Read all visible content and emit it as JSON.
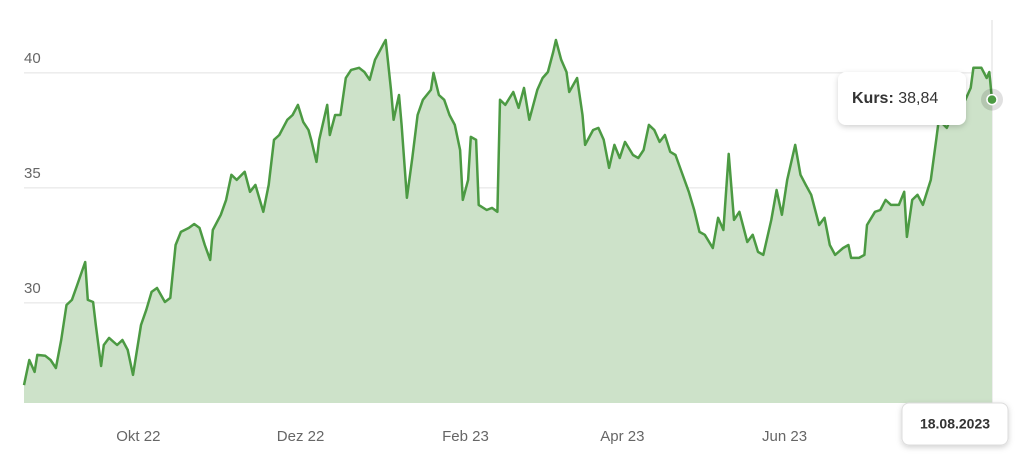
{
  "chart_data": {
    "type": "area",
    "x": [
      0,
      2,
      4,
      5,
      8,
      10,
      12,
      14,
      16,
      18,
      20,
      23,
      24,
      26,
      27,
      29,
      30,
      32,
      35,
      37,
      39,
      41,
      44,
      46,
      48,
      50,
      53,
      55,
      57,
      59,
      62,
      64,
      66,
      68,
      70,
      71,
      74,
      76,
      78,
      80,
      83,
      85,
      87,
      90,
      92,
      94,
      96,
      99,
      101,
      103,
      105,
      107,
      108,
      110,
      111,
      114,
      115,
      117,
      119,
      121,
      123,
      126,
      128,
      130,
      132,
      135,
      136,
      138,
      139,
      141,
      142,
      144,
      146,
      148,
      150,
      153,
      154,
      156,
      158,
      160,
      162,
      164,
      165,
      167,
      168,
      170,
      171,
      174,
      176,
      178,
      179,
      181,
      184,
      186,
      188,
      190,
      193,
      195,
      197,
      199,
      200,
      202,
      204,
      205,
      208,
      210,
      211,
      214,
      216,
      218,
      220,
      222,
      224,
      226,
      229,
      231,
      233,
      235,
      237,
      239,
      241,
      243,
      245,
      247,
      250,
      252,
      254,
      256,
      259,
      261,
      263,
      265,
      267,
      269,
      272,
      274,
      276,
      278,
      281,
      283,
      285,
      287,
      290,
      292,
      294,
      296,
      299,
      301,
      303,
      305,
      308,
      310,
      311,
      314,
      316,
      317,
      320,
      322,
      324,
      326,
      329,
      331,
      332,
      334,
      336,
      338,
      341,
      343,
      344,
      347,
      349,
      351,
      354,
      356,
      357,
      360,
      362,
      363,
      364
    ],
    "series": [
      {
        "name": "Kurs",
        "color": "#4c9a43",
        "fill_color": "#cde2c9",
        "values": [
          26.43,
          27.52,
          27.0,
          27.74,
          27.7,
          27.52,
          27.17,
          28.39,
          29.91,
          30.13,
          30.78,
          31.78,
          30.13,
          30.04,
          29.04,
          27.26,
          28.17,
          28.48,
          28.17,
          28.39,
          27.96,
          26.87,
          29.04,
          29.7,
          30.48,
          30.65,
          30.04,
          30.22,
          32.52,
          33.09,
          33.26,
          33.43,
          33.26,
          32.52,
          31.87,
          33.17,
          33.83,
          34.48,
          35.57,
          35.35,
          35.7,
          34.83,
          35.13,
          33.96,
          35.13,
          37.09,
          37.3,
          37.96,
          38.17,
          38.61,
          37.87,
          37.52,
          37.09,
          36.13,
          37.09,
          38.61,
          37.3,
          38.17,
          38.17,
          39.78,
          40.13,
          40.22,
          40.04,
          39.7,
          40.57,
          41.22,
          41.43,
          39.26,
          37.96,
          39.04,
          37.74,
          34.57,
          36.3,
          38.17,
          38.83,
          39.26,
          40.0,
          39.04,
          38.83,
          38.17,
          37.74,
          36.65,
          34.48,
          35.35,
          37.22,
          37.09,
          34.26,
          34.04,
          34.13,
          33.96,
          38.83,
          38.61,
          39.17,
          38.48,
          39.35,
          37.96,
          39.26,
          39.78,
          40.04,
          40.91,
          41.43,
          40.57,
          40.04,
          39.17,
          39.78,
          38.17,
          36.87,
          37.52,
          37.61,
          37.09,
          35.87,
          36.87,
          36.3,
          37.0,
          36.43,
          36.3,
          36.65,
          37.74,
          37.52,
          37.0,
          37.3,
          36.57,
          36.43,
          35.78,
          34.83,
          34.04,
          33.09,
          32.96,
          32.39,
          33.7,
          33.17,
          36.48,
          33.61,
          33.96,
          32.65,
          32.96,
          32.22,
          32.09,
          33.61,
          34.91,
          33.83,
          35.35,
          36.87,
          35.57,
          35.13,
          34.7,
          33.39,
          33.7,
          32.52,
          32.09,
          32.39,
          32.52,
          31.96,
          31.96,
          32.09,
          33.39,
          33.96,
          34.04,
          34.48,
          34.26,
          34.26,
          34.83,
          32.87,
          34.48,
          34.7,
          34.26,
          35.35,
          37.09,
          37.96,
          37.61,
          38.17,
          38.39,
          38.83,
          39.35,
          40.22,
          40.22,
          39.78,
          40.04,
          38.84
        ]
      }
    ],
    "xlim": [
      0,
      364
    ],
    "xticks": [
      {
        "value": 43,
        "label": "Okt 22"
      },
      {
        "value": 104,
        "label": "Dez 22"
      },
      {
        "value": 166,
        "label": "Feb 23"
      },
      {
        "value": 225,
        "label": "Apr 23"
      },
      {
        "value": 286,
        "label": "Jun 23"
      }
    ],
    "ylim": [
      25.65,
      42.3
    ],
    "yticks": [
      30,
      35,
      40
    ],
    "grid": true,
    "tooltip": {
      "label": "Kurs:",
      "value": 38.84,
      "value_label": "38,84",
      "date": "18.08.2023"
    }
  }
}
